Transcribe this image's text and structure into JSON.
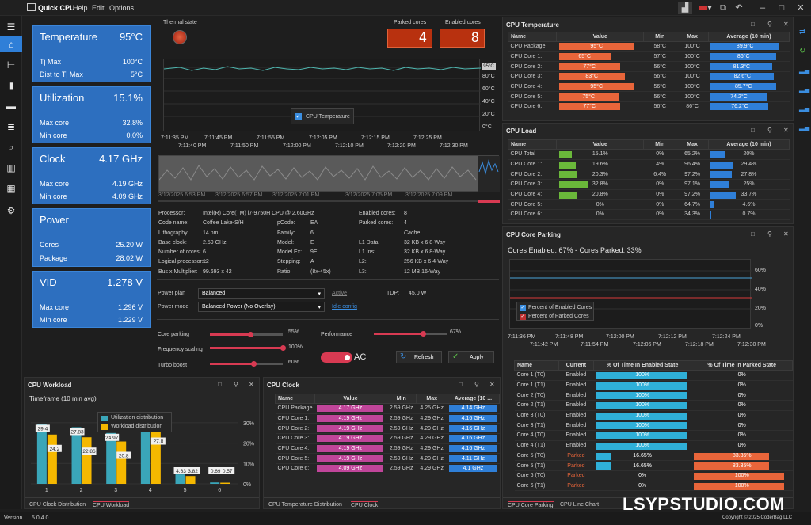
{
  "app": {
    "title": "Quick CPU",
    "menu": [
      "Help",
      "Edit",
      "Options"
    ],
    "version_label": "Version",
    "version": "5.0.4.0",
    "copyright": "Copyright © 2025 CoderBag LLC",
    "watermark": "LSYPSTUDIO.COM"
  },
  "cards": [
    {
      "title": "Temperature",
      "big": "95°C",
      "rows": [
        {
          "label": "Tj Max",
          "value": "100°C"
        },
        {
          "label": "Dist to Tj Max",
          "value": "5°C"
        }
      ]
    },
    {
      "title": "Utilization",
      "big": "15.1%",
      "rows": [
        {
          "label": "Max core",
          "value": "32.8%"
        },
        {
          "label": "Min core",
          "value": "0.0%"
        }
      ]
    },
    {
      "title": "Clock",
      "big": "4.17 GHz",
      "rows": [
        {
          "label": "Max core",
          "value": "4.19 GHz"
        },
        {
          "label": "Min core",
          "value": "4.09 GHz"
        }
      ]
    },
    {
      "title": "Power",
      "big": "",
      "rows": [
        {
          "label": "Cores",
          "value": "25.20 W"
        },
        {
          "label": "Package",
          "value": "28.02 W"
        }
      ]
    },
    {
      "title": "VID",
      "big": "1.278 V",
      "rows": [
        {
          "label": "Max core",
          "value": "1.296 V"
        },
        {
          "label": "Min core",
          "value": "1.229 V"
        }
      ]
    }
  ],
  "thermal": {
    "label": "Thermal state",
    "parked_label": "Parked cores",
    "parked_value": "4",
    "enabled_label": "Enabled cores",
    "enabled_value": "8",
    "legend": "CPU Temperature",
    "yticks": [
      "95°C",
      "80°C",
      "60°C",
      "40°C",
      "20°C",
      "0°C"
    ],
    "xticks_top": [
      "7:11:35 PM",
      "7:11:45 PM",
      "7:11:55 PM",
      "7:12:05 PM",
      "7:12:15 PM",
      "7:12:25 PM"
    ],
    "xticks_bottom": [
      "7:11:40 PM",
      "7:11:50 PM",
      "7:12:00 PM",
      "7:12:10 PM",
      "7:12:20 PM",
      "7:12:30 PM"
    ],
    "overview_ticks": [
      "3/12/2025 6:53 PM",
      "3/12/2025 6:57 PM",
      "3/12/2025 7:01 PM",
      "3/12/2025 7:05 PM",
      "3/12/2025 7:09 PM"
    ]
  },
  "cpuinfo": {
    "left": [
      {
        "k": "Processor:",
        "v": "Intel(R) Core(TM) i7-9750H CPU @ 2.60GHz"
      },
      {
        "k": "Code name:",
        "v": "Coffee Lake-S/H"
      },
      {
        "k": "Lithography:",
        "v": "14 nm"
      },
      {
        "k": "Base clock:",
        "v": "2.59 GHz"
      },
      {
        "k": "Number of cores:",
        "v": "6"
      },
      {
        "k": "Logical processors:",
        "v": "12"
      },
      {
        "k": "Bus x Multiplier:",
        "v": "99.693 x 42"
      }
    ],
    "mid": [
      {
        "k": "",
        "v": ""
      },
      {
        "k": "pCode:",
        "v": "EA"
      },
      {
        "k": "Family:",
        "v": "6"
      },
      {
        "k": "Model:",
        "v": "E"
      },
      {
        "k": "Model Ex:",
        "v": "9E"
      },
      {
        "k": "Stepping:",
        "v": "A"
      },
      {
        "k": "Ratio:",
        "v": "(8x-45x)"
      }
    ],
    "right": [
      {
        "k": "Enabled cores:",
        "v": "8"
      },
      {
        "k": "Parked cores:",
        "v": "4"
      },
      {
        "k": "",
        "v": "Cache"
      },
      {
        "k": "L1 Data:",
        "v": "32 KB x 6  8-Way"
      },
      {
        "k": "L1 Ins:",
        "v": "32 KB x 6  8-Way"
      },
      {
        "k": "L2:",
        "v": "256 KB x 6  4-Way"
      },
      {
        "k": "L3:",
        "v": "12 MB  16-Way"
      }
    ]
  },
  "power": {
    "plan_label": "Power plan",
    "plan_value": "Balanced",
    "plan_status": "Active",
    "mode_label": "Power mode",
    "mode_value": "Balanced Power (No Overlay)",
    "idle_link": "Idle config",
    "tdp_label": "TDP:",
    "tdp_value": "45.0 W",
    "core_parking_label": "Core parking",
    "core_parking_value": "55%",
    "core_parking_level": 0.55,
    "freq_label": "Frequency scaling",
    "freq_value": "100%",
    "freq_level": 1.0,
    "turbo_label": "Turbo boost",
    "turbo_value": "60%",
    "turbo_level": 0.6,
    "perf_label": "Performance",
    "perf_value": "67%",
    "perf_level": 0.67,
    "ac_label": "AC",
    "refresh_label": "Refresh",
    "apply_label": "Apply"
  },
  "cpu_temp_panel": {
    "title": "CPU Temperature",
    "headers": [
      "Name",
      "Value",
      "Min",
      "Max",
      "Average (10 min)"
    ],
    "rows": [
      {
        "name": "CPU Package",
        "value": "95°C",
        "pct": 0.95,
        "min": "58°C",
        "max": "100°C",
        "avg": "89.9°C",
        "avgpct": 0.9
      },
      {
        "name": "CPU Core 1:",
        "value": "65°C",
        "pct": 0.65,
        "min": "57°C",
        "max": "100°C",
        "avg": "86°C",
        "avgpct": 0.86
      },
      {
        "name": "CPU Core 2:",
        "value": "77°C",
        "pct": 0.77,
        "min": "56°C",
        "max": "100°C",
        "avg": "81.3°C",
        "avgpct": 0.81
      },
      {
        "name": "CPU Core 3:",
        "value": "83°C",
        "pct": 0.83,
        "min": "56°C",
        "max": "100°C",
        "avg": "82.6°C",
        "avgpct": 0.83
      },
      {
        "name": "CPU Core 4:",
        "value": "95°C",
        "pct": 0.95,
        "min": "56°C",
        "max": "100°C",
        "avg": "85.7°C",
        "avgpct": 0.86
      },
      {
        "name": "CPU Core 5:",
        "value": "75°C",
        "pct": 0.75,
        "min": "56°C",
        "max": "100°C",
        "avg": "74.2°C",
        "avgpct": 0.74
      },
      {
        "name": "CPU Core 6:",
        "value": "77°C",
        "pct": 0.77,
        "min": "56°C",
        "max": "86°C",
        "avg": "76.2°C",
        "avgpct": 0.76
      }
    ]
  },
  "cpu_load_panel": {
    "title": "CPU Load",
    "headers": [
      "Name",
      "Value",
      "Min",
      "Max",
      "Average (10 min)"
    ],
    "rows": [
      {
        "name": "CPU Total",
        "value": "15.1%",
        "pct": 0.151,
        "min": "0%",
        "max": "65.2%",
        "avg": "20%",
        "avgpct": 0.2
      },
      {
        "name": "CPU Core 1:",
        "value": "19.6%",
        "pct": 0.196,
        "min": "4%",
        "max": "96.4%",
        "avg": "29.4%",
        "avgpct": 0.294
      },
      {
        "name": "CPU Core 2:",
        "value": "20.3%",
        "pct": 0.203,
        "min": "6.4%",
        "max": "97.2%",
        "avg": "27.8%",
        "avgpct": 0.278
      },
      {
        "name": "CPU Core 3:",
        "value": "32.8%",
        "pct": 0.328,
        "min": "0%",
        "max": "97.1%",
        "avg": "25%",
        "avgpct": 0.25
      },
      {
        "name": "CPU Core 4:",
        "value": "20.8%",
        "pct": 0.208,
        "min": "0%",
        "max": "97.2%",
        "avg": "33.7%",
        "avgpct": 0.337
      },
      {
        "name": "CPU Core 5:",
        "value": "0%",
        "pct": 0,
        "min": "0%",
        "max": "64.7%",
        "avg": "4.6%",
        "avgpct": 0.046
      },
      {
        "name": "CPU Core 6:",
        "value": "0%",
        "pct": 0,
        "min": "0%",
        "max": "34.3%",
        "avg": "0.7%",
        "avgpct": 0.007
      }
    ]
  },
  "parking_panel": {
    "title": "CPU Core Parking",
    "summary": "Cores Enabled: 67% - Cores Parked: 33%",
    "legend_enabled": "Percent of Enabled Cores",
    "legend_parked": "Percent of Parked Cores",
    "yticks": [
      "60%",
      "40%",
      "20%",
      "0%"
    ],
    "xticks_top": [
      "7:11:36 PM",
      "7:11:48 PM",
      "7:12:00 PM",
      "7:12:12 PM",
      "7:12:24 PM"
    ],
    "xticks_bottom": [
      "7:11:42 PM",
      "7:11:54 PM",
      "7:12:06 PM",
      "7:12:18 PM",
      "7:12:30 PM"
    ],
    "headers": [
      "Name",
      "Current",
      "% Of Time In Enabled State",
      "% Of Time In Parked State"
    ],
    "rows": [
      {
        "name": "Core 1 (T0)",
        "state": "Enabled",
        "en": "100%",
        "enpct": 1,
        "pk": "0%",
        "pkpct": 0
      },
      {
        "name": "Core 1 (T1)",
        "state": "Enabled",
        "en": "100%",
        "enpct": 1,
        "pk": "0%",
        "pkpct": 0
      },
      {
        "name": "Core 2 (T0)",
        "state": "Enabled",
        "en": "100%",
        "enpct": 1,
        "pk": "0%",
        "pkpct": 0
      },
      {
        "name": "Core 2 (T1)",
        "state": "Enabled",
        "en": "100%",
        "enpct": 1,
        "pk": "0%",
        "pkpct": 0
      },
      {
        "name": "Core 3 (T0)",
        "state": "Enabled",
        "en": "100%",
        "enpct": 1,
        "pk": "0%",
        "pkpct": 0
      },
      {
        "name": "Core 3 (T1)",
        "state": "Enabled",
        "en": "100%",
        "enpct": 1,
        "pk": "0%",
        "pkpct": 0
      },
      {
        "name": "Core 4 (T0)",
        "state": "Enabled",
        "en": "100%",
        "enpct": 1,
        "pk": "0%",
        "pkpct": 0
      },
      {
        "name": "Core 4 (T1)",
        "state": "Enabled",
        "en": "100%",
        "enpct": 1,
        "pk": "0%",
        "pkpct": 0
      },
      {
        "name": "Core 5 (T0)",
        "state": "Parked",
        "en": "16.65%",
        "enpct": 0.1665,
        "pk": "83.35%",
        "pkpct": 0.8335
      },
      {
        "name": "Core 5 (T1)",
        "state": "Parked",
        "en": "16.65%",
        "enpct": 0.1665,
        "pk": "83.35%",
        "pkpct": 0.8335
      },
      {
        "name": "Core 6 (T0)",
        "state": "Parked",
        "en": "0%",
        "enpct": 0,
        "pk": "100%",
        "pkpct": 1
      },
      {
        "name": "Core 6 (T1)",
        "state": "Parked",
        "en": "0%",
        "enpct": 0,
        "pk": "100%",
        "pkpct": 1
      }
    ],
    "tabs": [
      "CPU Core Parking",
      "CPU Line Chart"
    ]
  },
  "workload_panel": {
    "title": "CPU Workload",
    "timeframe": "Timeframe (10 min avg)",
    "tabs": [
      "CPU Clock Distribution",
      "CPU Workload"
    ]
  },
  "clock_panel": {
    "title": "CPU Clock",
    "headers": [
      "Name",
      "Value",
      "Min",
      "Max",
      "Average (10 ..."
    ],
    "rows": [
      {
        "name": "CPU Package",
        "value": "4.17 GHz",
        "min": "2.59 GHz",
        "max": "4.25 GHz",
        "avg": "4.14 GHz"
      },
      {
        "name": "CPU Core 1:",
        "value": "4.19 GHz",
        "min": "2.59 GHz",
        "max": "4.29 GHz",
        "avg": "4.16 GHz"
      },
      {
        "name": "CPU Core 2:",
        "value": "4.19 GHz",
        "min": "2.59 GHz",
        "max": "4.29 GHz",
        "avg": "4.16 GHz"
      },
      {
        "name": "CPU Core 3:",
        "value": "4.19 GHz",
        "min": "2.59 GHz",
        "max": "4.29 GHz",
        "avg": "4.16 GHz"
      },
      {
        "name": "CPU Core 4:",
        "value": "4.19 GHz",
        "min": "2.59 GHz",
        "max": "4.29 GHz",
        "avg": "4.16 GHz"
      },
      {
        "name": "CPU Core 5:",
        "value": "4.19 GHz",
        "min": "2.59 GHz",
        "max": "4.29 GHz",
        "avg": "4.11 GHz"
      },
      {
        "name": "CPU Core 6:",
        "value": "4.09 GHz",
        "min": "2.59 GHz",
        "max": "4.29 GHz",
        "avg": "4.1 GHz"
      }
    ],
    "tabs": [
      "CPU Temperature Distribution",
      "CPU Clock"
    ]
  },
  "chart_data": {
    "type": "bar",
    "categories": [
      "1",
      "2",
      "3",
      "4",
      "5",
      "6"
    ],
    "series": [
      {
        "name": "Utilization distribution",
        "color": "#3aa6b9",
        "values": [
          29.4,
          27.83,
          24.97,
          33.7,
          4.63,
          0.69
        ]
      },
      {
        "name": "Workload distribution",
        "color": "#f5b800",
        "values": [
          24.2,
          22.86,
          20.8,
          27.8,
          3.82,
          0.57
        ]
      }
    ],
    "data_labels": [
      [
        "29.4",
        "27.83",
        "24.97",
        "33.7",
        "4.63",
        "0.69"
      ],
      [
        "24.2",
        "22.86",
        "20.8",
        "27.8",
        "3.82",
        "0.57"
      ]
    ],
    "yticks": [
      "30%",
      "20%",
      "10%",
      "0%"
    ],
    "ylim": [
      0,
      35
    ],
    "legend_placement": "top"
  }
}
